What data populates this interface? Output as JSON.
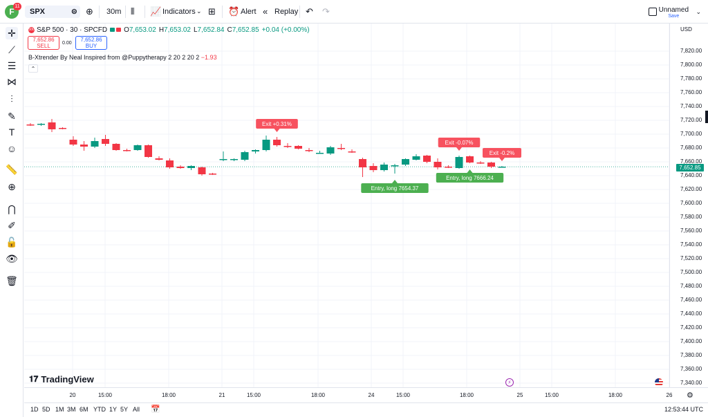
{
  "header": {
    "avatar_letter": "F",
    "avatar_badge": "11",
    "symbol": "SPX",
    "interval": "30m",
    "indicators_label": "Indicators",
    "alert_label": "Alert",
    "replay_label": "Replay",
    "layout_name": "Unnamed",
    "layout_save": "Save"
  },
  "legend": {
    "title": "S&P 500 · 30 · SPCFD",
    "o_label": "O",
    "o_value": "7,653.02",
    "h_label": "H",
    "h_value": "7,653.02",
    "l_label": "L",
    "l_value": "7,652.84",
    "c_label": "C",
    "c_value": "7,652.85",
    "change": "+0.04 (+0.00%)"
  },
  "trade": {
    "sell_price": "7,652.86",
    "sell_label": "SELL",
    "spread": "0.00",
    "buy_price": "7,652.86",
    "buy_label": "BUY"
  },
  "indicator": {
    "name": "B-Xtrender By Neal Inspired from @Puppytherapy 2 20 2 20 2",
    "value": "−1.93"
  },
  "brand": "TradingView",
  "colors": {
    "up": "#089981",
    "down": "#f23645",
    "grid": "#f0f3fa",
    "entry": "#4caf50",
    "exit": "#f7525f"
  },
  "price_axis": {
    "currency": "USD",
    "ticks": [
      "7,820.00",
      "7,800.00",
      "7,780.00",
      "7,760.00",
      "7,740.00",
      "7,720.00",
      "7,700.00",
      "7,680.00",
      "7,660.00",
      "7,640.00",
      "7,620.00",
      "7,600.00",
      "7,580.00",
      "7,560.00",
      "7,540.00",
      "7,520.00",
      "7,500.00",
      "7,480.00",
      "7,460.00",
      "7,440.00",
      "7,420.00",
      "7,400.00",
      "7,380.00",
      "7,360.00",
      "7,340.00"
    ],
    "current_price": "7,652.85"
  },
  "time_axis": {
    "labels": [
      "20",
      "15:00",
      "18:00",
      "21",
      "15:00",
      "18:00",
      "24",
      "15:00",
      "18:00",
      "25",
      "15:00",
      "18:00",
      "26"
    ]
  },
  "bottom_bar": {
    "ranges": [
      "1D",
      "5D",
      "1M",
      "3M",
      "6M",
      "YTD",
      "1Y",
      "5Y",
      "All"
    ],
    "clock": "12:53:44 UTC"
  },
  "chart_data": {
    "type": "candlestick",
    "ylim": [
      7330,
      7830
    ],
    "candles": [
      {
        "o": 7714,
        "h": 7716,
        "l": 7712,
        "c": 7713
      },
      {
        "o": 7714,
        "h": 7716,
        "l": 7712,
        "c": 7715
      },
      {
        "o": 7717,
        "h": 7722,
        "l": 7703,
        "c": 7707
      },
      {
        "o": 7709,
        "h": 7710,
        "l": 7707,
        "c": 7708
      },
      {
        "o": 7692,
        "h": 7697,
        "l": 7683,
        "c": 7685
      },
      {
        "o": 7685,
        "h": 7690,
        "l": 7676,
        "c": 7682
      },
      {
        "o": 7682,
        "h": 7695,
        "l": 7680,
        "c": 7690
      },
      {
        "o": 7693,
        "h": 7699,
        "l": 7683,
        "c": 7686
      },
      {
        "o": 7686,
        "h": 7687,
        "l": 7676,
        "c": 7677
      },
      {
        "o": 7677,
        "h": 7679,
        "l": 7675,
        "c": 7676
      },
      {
        "o": 7677,
        "h": 7685,
        "l": 7676,
        "c": 7684
      },
      {
        "o": 7684,
        "h": 7685,
        "l": 7666,
        "c": 7667
      },
      {
        "o": 7665,
        "h": 7668,
        "l": 7662,
        "c": 7663
      },
      {
        "o": 7662,
        "h": 7665,
        "l": 7650,
        "c": 7652
      },
      {
        "o": 7653,
        "h": 7655,
        "l": 7650,
        "c": 7651
      },
      {
        "o": 7651,
        "h": 7655,
        "l": 7648,
        "c": 7654
      },
      {
        "o": 7652,
        "h": 7653,
        "l": 7640,
        "c": 7642
      },
      {
        "o": 7643,
        "h": 7644,
        "l": 7641,
        "c": 7642
      },
      {
        "o": 7663,
        "h": 7675,
        "l": 7661,
        "c": 7664
      },
      {
        "o": 7663,
        "h": 7665,
        "l": 7661,
        "c": 7664
      },
      {
        "o": 7663,
        "h": 7676,
        "l": 7661,
        "c": 7674
      },
      {
        "o": 7675,
        "h": 7678,
        "l": 7672,
        "c": 7677
      },
      {
        "o": 7677,
        "h": 7698,
        "l": 7675,
        "c": 7692
      },
      {
        "o": 7692,
        "h": 7696,
        "l": 7682,
        "c": 7684
      },
      {
        "o": 7683,
        "h": 7687,
        "l": 7680,
        "c": 7682
      },
      {
        "o": 7683,
        "h": 7684,
        "l": 7678,
        "c": 7679
      },
      {
        "o": 7677,
        "h": 7680,
        "l": 7674,
        "c": 7676
      },
      {
        "o": 7673,
        "h": 7676,
        "l": 7672,
        "c": 7673
      },
      {
        "o": 7672,
        "h": 7683,
        "l": 7670,
        "c": 7681
      },
      {
        "o": 7680,
        "h": 7686,
        "l": 7677,
        "c": 7679
      },
      {
        "o": 7675,
        "h": 7678,
        "l": 7673,
        "c": 7674
      },
      {
        "o": 7664,
        "h": 7666,
        "l": 7638,
        "c": 7652
      },
      {
        "o": 7654,
        "h": 7658,
        "l": 7645,
        "c": 7648
      },
      {
        "o": 7648,
        "h": 7659,
        "l": 7646,
        "c": 7656
      },
      {
        "o": 7654,
        "h": 7657,
        "l": 7643,
        "c": 7655
      },
      {
        "o": 7656,
        "h": 7665,
        "l": 7654,
        "c": 7664
      },
      {
        "o": 7663,
        "h": 7671,
        "l": 7662,
        "c": 7668
      },
      {
        "o": 7669,
        "h": 7670,
        "l": 7658,
        "c": 7660
      },
      {
        "o": 7660,
        "h": 7665,
        "l": 7649,
        "c": 7652
      },
      {
        "o": 7653,
        "h": 7655,
        "l": 7651,
        "c": 7652
      },
      {
        "o": 7651,
        "h": 7669,
        "l": 7650,
        "c": 7667
      },
      {
        "o": 7668,
        "h": 7669,
        "l": 7658,
        "c": 7659
      },
      {
        "o": 7659,
        "h": 7661,
        "l": 7657,
        "c": 7658
      },
      {
        "o": 7659,
        "h": 7660,
        "l": 7651,
        "c": 7653
      },
      {
        "o": 7653,
        "h": 7654,
        "l": 7652,
        "c": 7653
      }
    ],
    "annotations": [
      {
        "kind": "exit",
        "text": "Exit +0.31%",
        "candle": 23
      },
      {
        "kind": "exit",
        "text": "Exit -0.07%",
        "candle": 40
      },
      {
        "kind": "exit",
        "text": "Exit -0.2%",
        "candle": 44
      },
      {
        "kind": "entry",
        "text": "Entry, long 7654.37",
        "candle": 34
      },
      {
        "kind": "entry",
        "text": "Entry, long 7666.24",
        "candle": 41
      }
    ]
  }
}
